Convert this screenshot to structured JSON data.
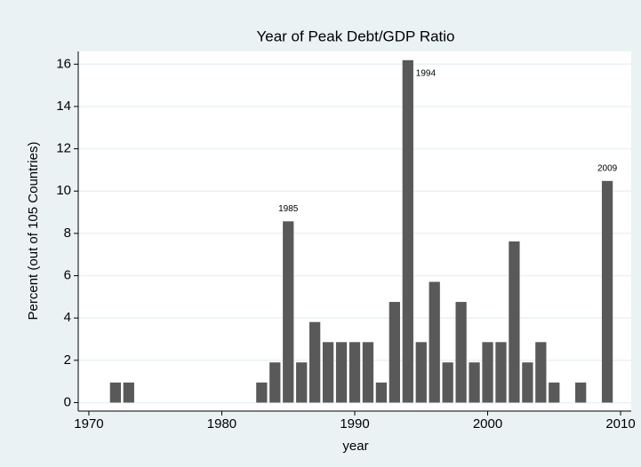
{
  "chart_data": {
    "type": "bar",
    "title": "Year of Peak Debt/GDP Ratio",
    "x_label": "year",
    "y_label": "Percent (out of 105 Countries)",
    "x": [
      1972,
      1973,
      1983,
      1984,
      1985,
      1986,
      1987,
      1988,
      1989,
      1990,
      1991,
      1992,
      1993,
      1994,
      1995,
      1996,
      1997,
      1998,
      1999,
      2000,
      2001,
      2002,
      2003,
      2004,
      2005,
      2007,
      2009
    ],
    "values": [
      0.95,
      0.95,
      0.95,
      1.9,
      8.57,
      1.9,
      3.81,
      2.86,
      2.86,
      2.86,
      2.86,
      0.95,
      4.76,
      16.19,
      2.86,
      5.71,
      1.9,
      4.76,
      1.9,
      2.86,
      2.86,
      7.62,
      1.9,
      2.86,
      0.95,
      0.95,
      10.48
    ],
    "color": "#595959",
    "annotations": [
      {
        "text": "1985",
        "x": 1985
      },
      {
        "text": "1994",
        "x": 1994
      },
      {
        "text": "2009",
        "x": 2009
      }
    ],
    "xlim": [
      1969.2,
      2010.8
    ],
    "xticks": [
      1970,
      1980,
      1990,
      2000,
      2010
    ],
    "ylim": [
      -0.4,
      16.6
    ],
    "yticks": [
      0,
      2,
      4,
      6,
      8,
      10,
      12,
      14,
      16
    ],
    "grid": true
  }
}
